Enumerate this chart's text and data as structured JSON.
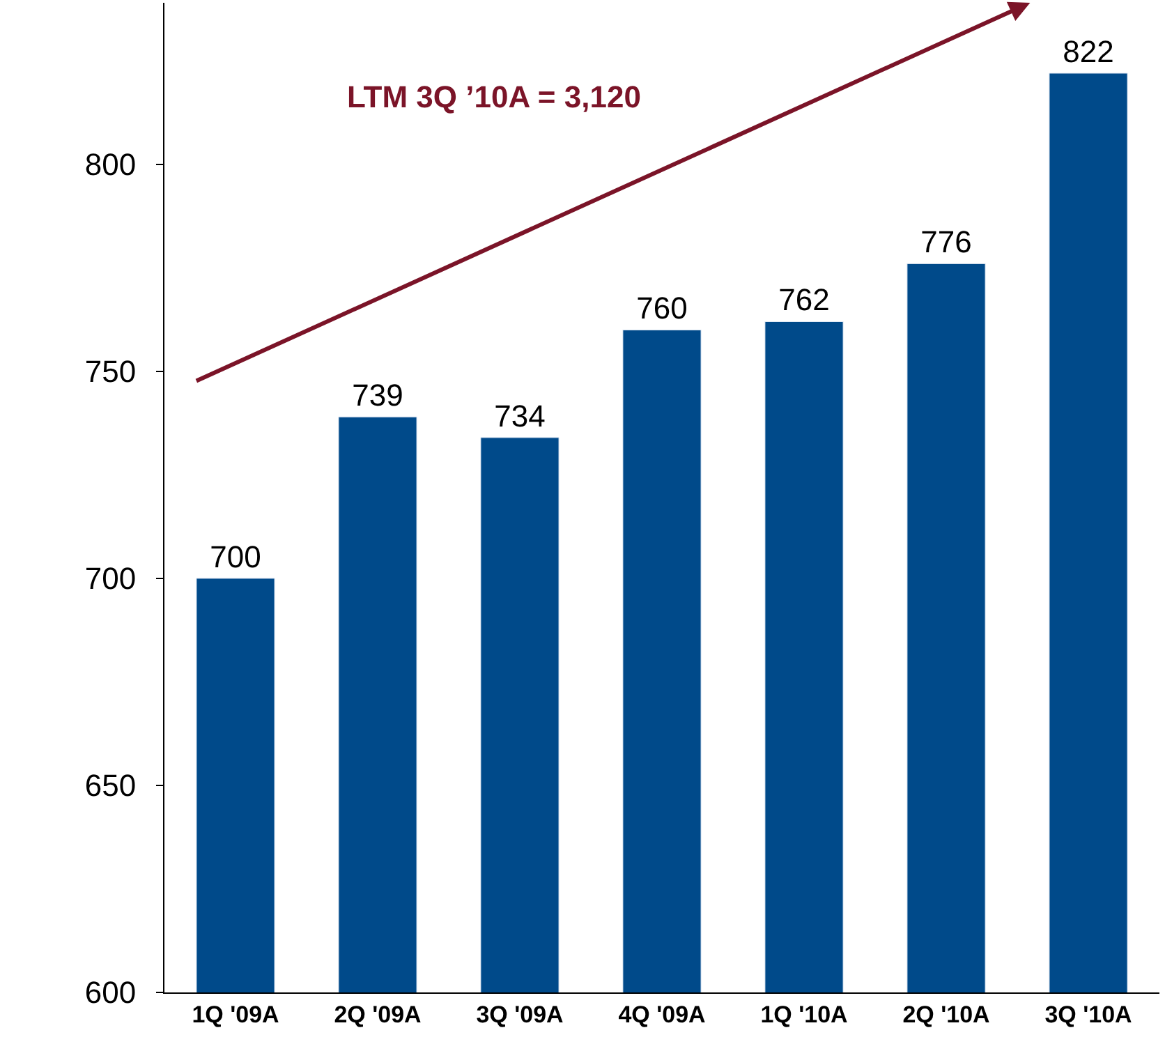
{
  "chart_data": {
    "type": "bar",
    "categories": [
      "1Q '09A",
      "2Q '09A",
      "3Q '09A",
      "4Q '09A",
      "1Q '10A",
      "2Q '10A",
      "3Q '10A"
    ],
    "values": [
      700,
      739,
      734,
      760,
      762,
      776,
      822
    ],
    "color": "#004a8a",
    "ylim": [
      600,
      839
    ],
    "yticks": [
      600,
      650,
      700,
      750,
      800
    ],
    "data_labels": true,
    "annotations": [
      "LTM 3Q ’10A = 3,120"
    ]
  }
}
